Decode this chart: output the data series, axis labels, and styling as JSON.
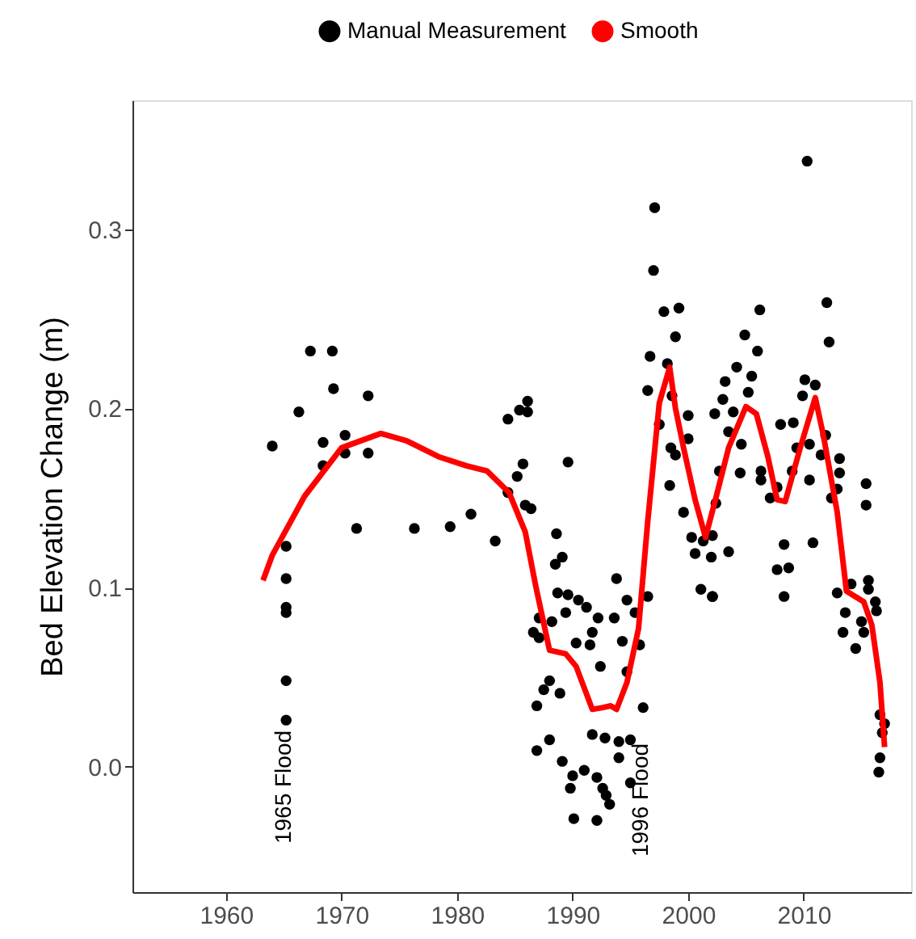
{
  "chart_data": {
    "type": "scatter",
    "ylabel": "Bed Elevation Change (m)",
    "xlim": [
      1951.9,
      2019.3
    ],
    "xticks": [
      1960,
      1970,
      1980,
      1990,
      2000,
      2010
    ],
    "ylim": [
      -0.07,
      0.372
    ],
    "yticks": [
      {
        "value": 0,
        "label": "0.0"
      },
      {
        "value": 0.1,
        "label": "0.1"
      },
      {
        "value": 0.2,
        "label": "0.2"
      },
      {
        "value": 0.3,
        "label": "0.3"
      }
    ],
    "grid": false,
    "legend": "top",
    "annotations": [
      "1965 Flood",
      "1996 Flood"
    ],
    "series": [
      {
        "name": "Manual Measurement",
        "color": "#000000",
        "marker": "circle",
        "x": [
          1964.0,
          1965.2,
          1965.2,
          1965.2,
          1965.2,
          1965.2,
          1965.2,
          1966.3,
          1967.3,
          1969.2,
          1969.3,
          1968.4,
          1968.4,
          1970.3,
          1970.3,
          1971.3,
          1972.3,
          1972.3,
          1976.3,
          1979.4,
          1981.2,
          1983.3,
          1984.4,
          1985.4,
          1986.1,
          1986.1,
          1984.4,
          1985.2,
          1985.7,
          1985.9,
          1986.4,
          1997.1,
          1997.0,
          1997.9,
          1999.2,
          1998.9,
          1996.7,
          1998.2,
          1996.5,
          1998.6,
          2000.0,
          1997.5,
          2000.0,
          1998.5,
          1998.9,
          1998.4,
          1999.6,
          2000.3,
          2001.3,
          2000.6,
          2001.1,
          2002.1,
          1989.6,
          1988.6,
          1989.1,
          1988.5,
          1988.7,
          1989.6,
          1990.5,
          1991.2,
          1989.4,
          1988.2,
          1987.1,
          1986.6,
          1987.1,
          1992.2,
          1991.7,
          1990.3,
          1991.5,
          1993.6,
          1993.8,
          1994.7,
          1995.4,
          1996.5,
          1994.3,
          1995.8,
          1992.4,
          1994.7,
          1988.0,
          1987.5,
          1988.9,
          1986.9,
          1996.1,
          1991.7,
          1992.8,
          1994.0,
          1995.0,
          1988.0,
          1986.9,
          1989.1,
          1994.0,
          1991.0,
          1990.0,
          1992.1,
          1989.8,
          1995.0,
          1992.6,
          1992.9,
          1993.2,
          1990.1,
          1992.1,
          2010.3,
          2012.0,
          2006.2,
          2012.2,
          2004.9,
          2006.0,
          2004.2,
          2003.2,
          2005.5,
          2010.1,
          2011.0,
          2005.2,
          2009.9,
          2003.0,
          2002.3,
          2003.9,
          2003.5,
          2008.0,
          2009.1,
          2004.6,
          2009.4,
          2010.5,
          2011.9,
          2011.5,
          2013.1,
          2002.7,
          2004.5,
          2006.3,
          2009.0,
          2006.3,
          2010.5,
          2013.1,
          2007.7,
          2012.9,
          2007.1,
          2012.4,
          2015.4,
          2015.4,
          2002.4,
          2002.1,
          2003.5,
          2002.0,
          2008.3,
          2010.8,
          2007.7,
          2008.7,
          2002.1,
          2008.3,
          2012.9,
          2014.1,
          2015.6,
          2015.6,
          2016.2,
          2016.3,
          2013.6,
          2013.4,
          2015.0,
          2015.2,
          2014.5,
          2016.6,
          2017.0,
          2016.8,
          2016.6,
          2016.5
        ],
        "values": [
          0.179,
          0.123,
          0.105,
          0.089,
          0.086,
          0.048,
          0.026,
          0.198,
          0.232,
          0.232,
          0.211,
          0.181,
          0.168,
          0.185,
          0.175,
          0.133,
          0.207,
          0.175,
          0.133,
          0.134,
          0.141,
          0.126,
          0.194,
          0.199,
          0.204,
          0.198,
          0.153,
          0.162,
          0.169,
          0.146,
          0.144,
          0.312,
          0.277,
          0.254,
          0.256,
          0.24,
          0.229,
          0.225,
          0.21,
          0.207,
          0.196,
          0.191,
          0.183,
          0.178,
          0.174,
          0.157,
          0.142,
          0.128,
          0.126,
          0.119,
          0.099,
          0.095,
          0.17,
          0.13,
          0.117,
          0.113,
          0.097,
          0.096,
          0.093,
          0.089,
          0.086,
          0.081,
          0.083,
          0.075,
          0.072,
          0.083,
          0.075,
          0.069,
          0.068,
          0.083,
          0.105,
          0.093,
          0.086,
          0.095,
          0.07,
          0.068,
          0.056,
          0.053,
          0.048,
          0.043,
          0.041,
          0.034,
          0.033,
          0.018,
          0.016,
          0.014,
          0.015,
          0.015,
          0.009,
          0.003,
          0.005,
          -0.002,
          -0.005,
          -0.006,
          -0.012,
          -0.009,
          -0.012,
          -0.016,
          -0.021,
          -0.029,
          -0.03,
          0.338,
          0.259,
          0.255,
          0.237,
          0.241,
          0.232,
          0.223,
          0.215,
          0.218,
          0.216,
          0.213,
          0.209,
          0.207,
          0.205,
          0.197,
          0.198,
          0.187,
          0.191,
          0.192,
          0.18,
          0.178,
          0.18,
          0.185,
          0.174,
          0.172,
          0.165,
          0.164,
          0.165,
          0.165,
          0.16,
          0.16,
          0.164,
          0.156,
          0.155,
          0.15,
          0.15,
          0.158,
          0.146,
          0.147,
          0.129,
          0.12,
          0.117,
          0.124,
          0.125,
          0.11,
          0.111,
          0.095,
          0.095,
          0.097,
          0.102,
          0.104,
          0.099,
          0.092,
          0.087,
          0.086,
          0.075,
          0.081,
          0.075,
          0.066,
          0.029,
          0.024,
          0.019,
          0.005,
          -0.003
        ]
      },
      {
        "name": "Smooth",
        "type": "line",
        "color": "#ff0000",
        "line_style": "solid",
        "marker": "none",
        "x": [
          1963.2,
          1964.0,
          1966.8,
          1970.0,
          1973.4,
          1975.6,
          1978.4,
          1980.8,
          1982.6,
          1984.5,
          1985.9,
          1986.8,
          1988.0,
          1989.4,
          1990.3,
          1991.7,
          1992.6,
          1993.3,
          1993.8,
          1994.7,
          1995.7,
          1996.5,
          1997.5,
          1998.4,
          1998.9,
          1999.6,
          2000.6,
          2001.5,
          2002.4,
          2003.5,
          2005.0,
          2005.9,
          2006.9,
          2007.7,
          2008.4,
          2009.7,
          2011.0,
          2011.7,
          2012.9,
          2013.7,
          2015.2,
          2015.9,
          2016.6,
          2017.0
        ],
        "values": [
          0.104,
          0.118,
          0.151,
          0.178,
          0.186,
          0.182,
          0.173,
          0.168,
          0.165,
          0.153,
          0.131,
          0.101,
          0.065,
          0.063,
          0.056,
          0.032,
          0.033,
          0.034,
          0.032,
          0.047,
          0.077,
          0.137,
          0.203,
          0.223,
          0.2,
          0.178,
          0.149,
          0.128,
          0.15,
          0.178,
          0.201,
          0.197,
          0.173,
          0.149,
          0.148,
          0.178,
          0.206,
          0.185,
          0.142,
          0.098,
          0.092,
          0.079,
          0.047,
          0.011
        ]
      }
    ]
  }
}
